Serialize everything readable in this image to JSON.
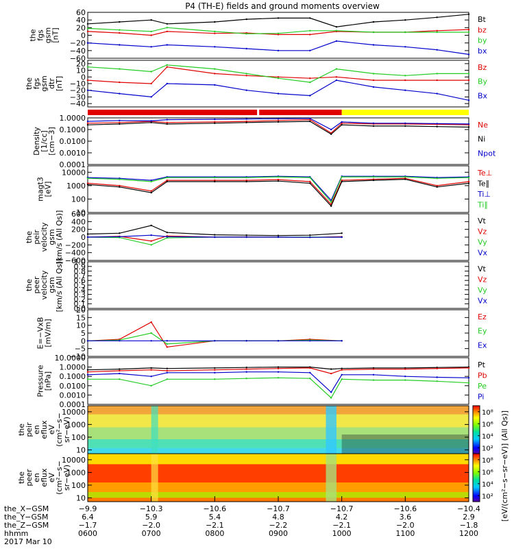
{
  "title": "P4 (TH-E) fields and ground moments overview",
  "colors": {
    "black": "#000000",
    "red": "#e00000",
    "green": "#22cc22",
    "blue": "#0000cc",
    "yellow": "#ffff00"
  },
  "bars": [
    {
      "color": "red",
      "from": "0600",
      "to": "0840"
    },
    {
      "color": "red",
      "from": "0842",
      "to": "1000"
    },
    {
      "color": "yellow",
      "from": "1000",
      "to": "1200"
    }
  ],
  "panels": [
    {
      "id": "p1",
      "ylabel": [
        "the",
        "fgs",
        "gsm",
        "[nT]"
      ],
      "ylim": [
        -60,
        60
      ],
      "ticks": [
        "60",
        "40",
        "20",
        "0",
        "−20",
        "−40",
        "−60"
      ],
      "tick_values": [
        60,
        40,
        20,
        0,
        -20,
        -40,
        -60
      ],
      "log": false,
      "legend": [
        {
          "t": "Bt",
          "c": "black"
        },
        {
          "t": "bz",
          "c": "red"
        },
        {
          "t": "by",
          "c": "green"
        },
        {
          "t": "bx",
          "c": "blue"
        }
      ]
    },
    {
      "id": "p2",
      "ylabel": [
        "the",
        "fgs",
        "gsm",
        "dtr",
        "[nT]"
      ],
      "ylim": [
        -45,
        25
      ],
      "ticks": [
        "20",
        "10",
        "0",
        "−10",
        "−20",
        "−30",
        "−40"
      ],
      "tick_values": [
        20,
        10,
        0,
        -10,
        -20,
        -30,
        -40
      ],
      "log": false,
      "legend": [
        {
          "t": "Bz",
          "c": "red"
        },
        {
          "t": "By",
          "c": "green"
        },
        {
          "t": "Bx",
          "c": "blue"
        }
      ]
    },
    {
      "id": "p3",
      "ylabel": [
        "Density",
        "[1/cc]",
        "[cm−3]"
      ],
      "ylim": [
        0.0001,
        1.0
      ],
      "log": true,
      "ticks": [
        "1.0000",
        "0.1000",
        "0.0100",
        "0.0010",
        "0.0001"
      ],
      "tick_values": [
        1.0,
        0.1,
        0.01,
        0.001,
        0.0001
      ],
      "legend": [
        {
          "t": "Ne",
          "c": "red"
        },
        {
          "t": "Ni",
          "c": "black"
        },
        {
          "t": "Npot",
          "c": "blue"
        }
      ]
    },
    {
      "id": "p4",
      "ylabel": [
        "magt3",
        "[eV]"
      ],
      "ylim": [
        10,
        30000
      ],
      "log": true,
      "ticks": [
        "10000",
        "1000",
        "100",
        "10"
      ],
      "tick_values": [
        10000,
        1000,
        100,
        10
      ],
      "legend": [
        {
          "t": "Te⊥",
          "c": "red"
        },
        {
          "t": "Te∥",
          "c": "black"
        },
        {
          "t": "Ti⊥",
          "c": "blue"
        },
        {
          "t": "Ti∥",
          "c": "green"
        }
      ]
    },
    {
      "id": "p5",
      "ylabel": [
        "the",
        "peir",
        "velocity",
        "gsm",
        "[km/s (All Qs)]"
      ],
      "ylim": [
        -600,
        600
      ],
      "log": false,
      "ticks": [
        "600",
        "400",
        "200",
        "0",
        "−200",
        "−400",
        "−600"
      ],
      "tick_values": [
        600,
        400,
        200,
        0,
        -200,
        -400,
        -600
      ],
      "legend": [
        {
          "t": "Vt",
          "c": "black"
        },
        {
          "t": "Vz",
          "c": "red"
        },
        {
          "t": "Vy",
          "c": "green"
        },
        {
          "t": "Vx",
          "c": "blue"
        }
      ]
    },
    {
      "id": "p6",
      "ylabel": [
        "the",
        "peer",
        "velocity",
        "gsm",
        "[km/s (All Qs)]"
      ],
      "ylim": [
        0,
        1.0
      ],
      "log": false,
      "ticks": [
        "1.0",
        "0.9",
        "0.8",
        "0.7",
        "0.6",
        "0.5",
        "0.4",
        "0.3",
        "0.2",
        "0.1",
        "0.0"
      ],
      "tick_values": [
        1.0,
        0.9,
        0.8,
        0.7,
        0.6,
        0.5,
        0.4,
        0.3,
        0.2,
        0.1,
        0.0
      ],
      "legend": [
        {
          "t": "Vt",
          "c": "black"
        },
        {
          "t": "Vz",
          "c": "red"
        },
        {
          "t": "Vy",
          "c": "green"
        },
        {
          "t": "Vx",
          "c": "blue"
        }
      ]
    },
    {
      "id": "p7",
      "ylabel": [
        "E=−VxB",
        "[mV/m]"
      ],
      "ylim": [
        -10,
        20
      ],
      "log": false,
      "ticks": [
        "20",
        "15",
        "10",
        "5",
        "0",
        "−5",
        "−10"
      ],
      "tick_values": [
        20,
        15,
        10,
        5,
        0,
        -5,
        -10
      ],
      "legend": [
        {
          "t": "Ez",
          "c": "red"
        },
        {
          "t": "Ey",
          "c": "green"
        },
        {
          "t": "Ex",
          "c": "blue"
        }
      ]
    },
    {
      "id": "p8",
      "ylabel": [
        "Pressure",
        "[nPa]"
      ],
      "ylim": [
        0.0001,
        10.0
      ],
      "log": true,
      "ticks": [
        "10.0000",
        "1.0000",
        "0.1000",
        "0.0100",
        "0.0010",
        "0.0001"
      ],
      "tick_values": [
        10,
        1,
        0.1,
        0.01,
        0.001,
        0.0001
      ],
      "legend": [
        {
          "t": "Pt",
          "c": "black"
        },
        {
          "t": "Pb",
          "c": "red"
        },
        {
          "t": "Pe",
          "c": "green"
        },
        {
          "t": "Pi",
          "c": "blue"
        }
      ]
    },
    {
      "id": "p9",
      "ylabel": [
        "the",
        "peir",
        "en",
        "eflux",
        "eV",
        "(cm²−s−",
        "sr−eV)"
      ],
      "ylim": [
        5,
        30000
      ],
      "log": true,
      "ticks": [
        "10000",
        "1000",
        "100",
        "10"
      ],
      "tick_values": [
        10000,
        1000,
        100,
        10
      ],
      "colorbar": {
        "ticks": [
          "10⁸",
          "10⁶",
          "10⁴",
          "10²"
        ],
        "tick_values": [
          8,
          6,
          4,
          2
        ],
        "range": [
          1,
          9
        ]
      }
    },
    {
      "id": "p10",
      "ylabel": [
        "the",
        "peer",
        "en",
        "eflux",
        "eV",
        "(cm²−s−",
        "sr−eV)"
      ],
      "ylim": [
        5,
        30000
      ],
      "log": true,
      "ticks": [
        "10000",
        "1000",
        "100",
        "10"
      ],
      "tick_values": [
        10000,
        1000,
        100,
        10
      ],
      "colorbar": {
        "ticks": [
          "10⁸",
          "10⁶",
          "10⁴",
          "10²"
        ],
        "tick_values": [
          8,
          6,
          4,
          2
        ],
        "range": [
          1,
          9
        ]
      }
    }
  ],
  "colorbar_label": "[eV/(cm²−s−sr−eV)] (All Qs)]",
  "xaxis": {
    "rows": [
      {
        "label": "the_X−GSM",
        "values": [
          "−9.9",
          "−10.3",
          "−10.6",
          "−10.7",
          "−10.7",
          "−10.6",
          "−10.4"
        ]
      },
      {
        "label": "the_Y−GSM",
        "values": [
          "6.4",
          "5.9",
          "5.4",
          "4.8",
          "4.2",
          "3.6",
          "2.9"
        ]
      },
      {
        "label": "the_Z−GSM",
        "values": [
          "−1.7",
          "−2.0",
          "−2.1",
          "−2.2",
          "−2.1",
          "−2.0",
          "−1.8"
        ]
      },
      {
        "label": "hhmm",
        "values": [
          "0600",
          "0700",
          "0800",
          "0900",
          "1000",
          "1100",
          "1200"
        ]
      }
    ],
    "date": "2017 Mar 10"
  },
  "chart_data": [
    {
      "type": "line",
      "panel": "p1",
      "xlabel": "hhmm",
      "ylabel": "the fgs gsm [nT]",
      "ylim": [
        -60,
        60
      ],
      "x": [
        "0600",
        "0630",
        "0700",
        "0715",
        "0800",
        "0830",
        "0900",
        "0930",
        "0955",
        "1030",
        "1100",
        "1130",
        "1200"
      ],
      "series": [
        {
          "name": "Bt",
          "values": [
            30,
            35,
            40,
            30,
            35,
            42,
            45,
            45,
            22,
            35,
            40,
            47,
            55
          ]
        },
        {
          "name": "bz",
          "values": [
            10,
            6,
            0,
            10,
            5,
            6,
            2,
            2,
            10,
            8,
            8,
            12,
            15
          ]
        },
        {
          "name": "by",
          "values": [
            18,
            14,
            10,
            20,
            10,
            4,
            5,
            12,
            12,
            8,
            8,
            8,
            8
          ]
        },
        {
          "name": "bx",
          "values": [
            -20,
            -25,
            -30,
            -25,
            -30,
            -35,
            -40,
            -40,
            -15,
            -25,
            -30,
            -38,
            -50
          ]
        }
      ]
    },
    {
      "type": "line",
      "panel": "p2",
      "xlabel": "hhmm",
      "ylabel": "the fgs gsm dtr [nT]",
      "ylim": [
        -45,
        25
      ],
      "x": [
        "0600",
        "0630",
        "0700",
        "0715",
        "0800",
        "0830",
        "0900",
        "0930",
        "0955",
        "1030",
        "1100",
        "1130",
        "1200"
      ],
      "series": [
        {
          "name": "Bz",
          "values": [
            -5,
            -8,
            -10,
            15,
            5,
            2,
            0,
            -2,
            0,
            -5,
            -5,
            -5,
            -5
          ]
        },
        {
          "name": "By",
          "values": [
            15,
            12,
            8,
            18,
            12,
            5,
            -2,
            -8,
            12,
            5,
            2,
            5,
            5
          ]
        },
        {
          "name": "Bx",
          "values": [
            -20,
            -25,
            -30,
            -10,
            -12,
            -20,
            -25,
            -28,
            -5,
            -15,
            -20,
            -25,
            -35
          ]
        }
      ]
    },
    {
      "type": "line",
      "panel": "p3",
      "xlabel": "hhmm",
      "ylabel": "Density [1/cc] [cm−3]",
      "ylim": [
        0.0001,
        1.0
      ],
      "yscale": "log",
      "x": [
        "0600",
        "0630",
        "0700",
        "0715",
        "0800",
        "0830",
        "0900",
        "0930",
        "0950",
        "1000",
        "1030",
        "1100",
        "1130",
        "1200"
      ],
      "series": [
        {
          "name": "Ne",
          "values": [
            0.35,
            0.4,
            0.5,
            0.4,
            0.45,
            0.5,
            0.6,
            0.7,
            0.05,
            0.35,
            0.3,
            0.3,
            0.28,
            0.25
          ]
        },
        {
          "name": "Ni",
          "values": [
            0.25,
            0.3,
            0.4,
            0.3,
            0.35,
            0.4,
            0.45,
            0.5,
            0.04,
            0.25,
            0.2,
            0.2,
            0.18,
            0.16
          ]
        },
        {
          "name": "Npot",
          "values": [
            0.5,
            0.6,
            0.55,
            0.7,
            0.75,
            0.8,
            0.85,
            0.9,
            0.1,
            0.45,
            0.35,
            0.35,
            0.32,
            0.3
          ]
        }
      ]
    },
    {
      "type": "line",
      "panel": "p4",
      "xlabel": "hhmm",
      "ylabel": "magt3 [eV]",
      "ylim": [
        10,
        30000
      ],
      "yscale": "log",
      "x": [
        "0600",
        "0630",
        "0700",
        "0715",
        "0800",
        "0830",
        "0900",
        "0930",
        "0950",
        "1000",
        "1030",
        "1100",
        "1130",
        "1200"
      ],
      "series": [
        {
          "name": "Te⊥",
          "values": [
            1500,
            1000,
            400,
            2500,
            2500,
            2500,
            2800,
            2000,
            40,
            2500,
            3000,
            3500,
            1000,
            2000
          ]
        },
        {
          "name": "Te∥",
          "values": [
            1200,
            800,
            300,
            2000,
            2000,
            2000,
            2200,
            1500,
            30,
            2000,
            2500,
            3000,
            800,
            1500
          ]
        },
        {
          "name": "Ti⊥",
          "values": [
            4000,
            3500,
            2500,
            4500,
            4500,
            4500,
            5000,
            4500,
            80,
            5000,
            5000,
            5000,
            4000,
            4500
          ]
        },
        {
          "name": "Ti∥",
          "values": [
            3500,
            3000,
            2000,
            4000,
            4000,
            4000,
            4500,
            4000,
            60,
            4500,
            4500,
            4500,
            3500,
            4000
          ]
        }
      ]
    },
    {
      "type": "line",
      "panel": "p5",
      "xlabel": "hhmm",
      "ylabel": "the peir velocity gsm [km/s (All Qs)]",
      "ylim": [
        -600,
        600
      ],
      "x": [
        "0600",
        "0630",
        "0700",
        "0715",
        "0800",
        "0830",
        "0900",
        "0930",
        "1000"
      ],
      "series": [
        {
          "name": "Vt",
          "values": [
            80,
            100,
            300,
            120,
            60,
            50,
            40,
            50,
            100
          ]
        },
        {
          "name": "Vz",
          "values": [
            0,
            20,
            -100,
            30,
            0,
            5,
            0,
            -5,
            10
          ]
        },
        {
          "name": "Vy",
          "values": [
            0,
            -10,
            -200,
            -20,
            0,
            0,
            0,
            0,
            0
          ]
        },
        {
          "name": "Vx",
          "values": [
            0,
            10,
            50,
            10,
            0,
            0,
            0,
            -5,
            0
          ]
        }
      ]
    },
    {
      "type": "line",
      "panel": "p6",
      "xlabel": "hhmm",
      "ylabel": "the peer velocity gsm [km/s (All Qs)]",
      "ylim": [
        0,
        1.0
      ],
      "x": [],
      "series": []
    },
    {
      "type": "line",
      "panel": "p7",
      "xlabel": "hhmm",
      "ylabel": "E=−VxB [mV/m]",
      "ylim": [
        -10,
        20
      ],
      "x": [
        "0600",
        "0630",
        "0700",
        "0715",
        "0800",
        "0830",
        "0900",
        "0930",
        "1000"
      ],
      "series": [
        {
          "name": "Ez",
          "values": [
            0,
            1,
            12,
            -4,
            0,
            0,
            0,
            1,
            0
          ]
        },
        {
          "name": "Ey",
          "values": [
            0,
            0.5,
            5,
            -2,
            0,
            0,
            0,
            0.5,
            0
          ]
        },
        {
          "name": "Ex",
          "values": [
            0,
            0,
            0,
            0,
            0,
            0,
            0,
            0,
            0
          ]
        }
      ]
    },
    {
      "type": "line",
      "panel": "p8",
      "xlabel": "hhmm",
      "ylabel": "Pressure [nPa]",
      "ylim": [
        0.0001,
        10
      ],
      "yscale": "log",
      "x": [
        "0600",
        "0630",
        "0700",
        "0715",
        "0800",
        "0830",
        "0900",
        "0930",
        "0950",
        "1000",
        "1030",
        "1100",
        "1130",
        "1200"
      ],
      "series": [
        {
          "name": "Pt",
          "values": [
            0.5,
            0.6,
            0.8,
            0.7,
            0.8,
            0.9,
            1.0,
            1.0,
            0.6,
            0.7,
            0.8,
            0.8,
            0.9,
            1.0
          ]
        },
        {
          "name": "Pb",
          "values": [
            0.3,
            0.4,
            0.5,
            0.4,
            0.5,
            0.6,
            0.7,
            0.8,
            0.2,
            0.5,
            0.6,
            0.6,
            0.7,
            0.8
          ]
        },
        {
          "name": "Pe",
          "values": [
            0.05,
            0.05,
            0.01,
            0.05,
            0.05,
            0.06,
            0.07,
            0.06,
            0.0005,
            0.05,
            0.04,
            0.04,
            0.03,
            0.02
          ]
        },
        {
          "name": "Pi",
          "values": [
            0.15,
            0.2,
            0.1,
            0.25,
            0.25,
            0.3,
            0.3,
            0.25,
            0.002,
            0.15,
            0.15,
            0.1,
            0.08,
            0.07
          ]
        }
      ]
    },
    {
      "type": "heatmap",
      "panel": "p9",
      "xlabel": "hhmm",
      "ylabel": "the peir en eflux eV (cm²−s−sr−eV)",
      "yscale": "log",
      "colorbar_range_log10": [
        1,
        9
      ]
    },
    {
      "type": "heatmap",
      "panel": "p10",
      "xlabel": "hhmm",
      "ylabel": "the peer en eflux eV (cm²−s−sr−eV)",
      "yscale": "log",
      "colorbar_range_log10": [
        1,
        9
      ]
    }
  ]
}
